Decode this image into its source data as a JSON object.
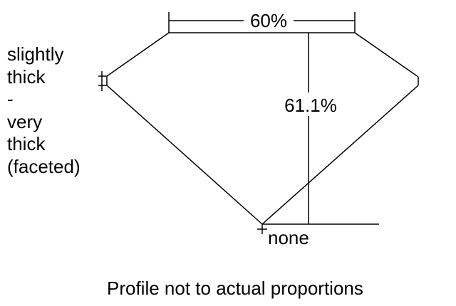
{
  "diagram": {
    "table_label": "60%",
    "depth_label": "61.1%",
    "culet_label": "none",
    "girdle_label_lines": [
      "slightly",
      "thick",
      "-",
      "very",
      "thick",
      "(faceted)"
    ],
    "note": "Profile not to actual proportions"
  }
}
